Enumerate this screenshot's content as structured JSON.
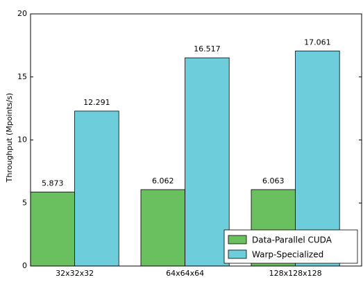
{
  "chart_data": {
    "type": "bar",
    "ylabel": "Throughput (Mpoints/s)",
    "categories": [
      "32x32x32",
      "64x64x64",
      "128x128x128"
    ],
    "series": [
      {
        "name": "Data-Parallel CUDA",
        "color": "#6abf5e",
        "values": [
          5.873,
          6.062,
          6.063
        ]
      },
      {
        "name": "Warp-Specialized",
        "color": "#6dcddb",
        "values": [
          12.291,
          16.517,
          17.061
        ]
      }
    ],
    "ylim": [
      0,
      20
    ],
    "yticks": [
      0,
      5,
      10,
      15,
      20
    ],
    "legend": "lower right"
  }
}
